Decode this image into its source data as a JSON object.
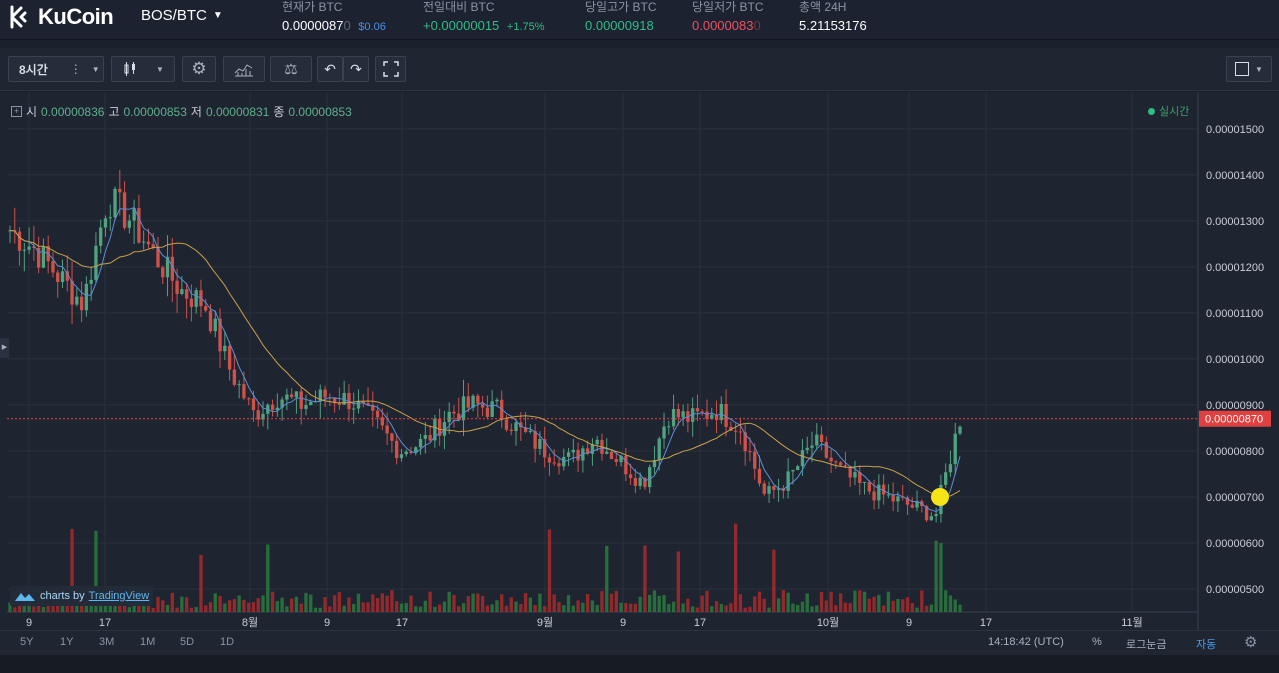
{
  "header": {
    "logo_text": "KuCoin",
    "pair": "BOS/BTC",
    "stats": [
      {
        "label": "현재가 BTC",
        "value": "0.0000087",
        "value_dim": "0",
        "extra": "$0.06",
        "color": "#ffffff",
        "extra_color": "#4a8fe7"
      },
      {
        "label": "전일대비 BTC",
        "value": "+0.00000015",
        "extra": "+1.75%",
        "color": "#2fbd85",
        "extra_color": "#2fbd85"
      },
      {
        "label": "당일고가 BTC",
        "value": "0.00000918",
        "color": "#2fbd85"
      },
      {
        "label": "당일저가 BTC",
        "value": "0.0000083",
        "value_dim": "0",
        "color": "#ee4f61"
      },
      {
        "label": "총액 24H",
        "value": "5.21153176",
        "color": "#ffffff"
      }
    ]
  },
  "toolbar": {
    "interval_label": "8시간"
  },
  "legend": {
    "open_label": "시",
    "open": "0.00000836",
    "high_label": "고",
    "high": "0.00000853",
    "low_label": "저",
    "low": "0.00000831",
    "close_label": "종",
    "close": "0.00000853",
    "realtime_label": "실시간"
  },
  "chart_data": {
    "type": "candlestick",
    "y_ticks": [
      "0.00001500",
      "0.00001400",
      "0.00001300",
      "0.00001200",
      "0.00001100",
      "0.00001000",
      "0.00000900",
      "0.00000800",
      "0.00000700",
      "0.00000600",
      "0.00000500"
    ],
    "y_values": [
      1.5e-05,
      1.4e-05,
      1.3e-05,
      1.2e-05,
      1.1e-05,
      1e-05,
      9e-06,
      8e-06,
      7e-06,
      6e-06,
      5e-06
    ],
    "x_ticks": [
      "9",
      "17",
      "8월",
      "9",
      "17",
      "9월",
      "9",
      "17",
      "10월",
      "9",
      "17",
      "11월"
    ],
    "current_price_label": "0.00000870",
    "current_price": 8.7e-06,
    "ylim": [
      4.5e-06,
      1.58e-05
    ],
    "close_trend": [
      1.28e-05,
      1.24e-05,
      1.18e-05,
      1.12e-05,
      1.35e-05,
      1.3e-05,
      1.22e-05,
      1.15e-05,
      1.12e-05,
      9.8e-06,
      8.8e-06,
      9.2e-06,
      9e-06,
      9.2e-06,
      9.1e-06,
      8.6e-06,
      8e-06,
      8.2e-06,
      8.8e-06,
      9e-06,
      8.9e-06,
      8.4e-06,
      8e-06,
      7.8e-06,
      8.3e-06,
      7.8e-06,
      7.3e-06,
      8.8e-06,
      8.7e-06,
      8.9e-06,
      8.5e-06,
      7e-06,
      7.4e-06,
      8.2e-06,
      7.6e-06,
      7.2e-06,
      7e-06,
      6.8e-06,
      6.6e-06,
      8.7e-06
    ]
  },
  "bottombar": {
    "ranges": [
      "5Y",
      "1Y",
      "3M",
      "1M",
      "5D",
      "1D"
    ],
    "time": "14:18:42 (UTC)",
    "percent": "%",
    "log": "로그눈금",
    "auto": "자동"
  },
  "watermark": {
    "prefix": "charts by",
    "brand": "TradingView"
  },
  "colors": {
    "up": "#4fa380",
    "down": "#d0514a",
    "ma_blue": "#5b8fd6",
    "ma_orange": "#c9a14a",
    "price_line": "#e04646"
  }
}
